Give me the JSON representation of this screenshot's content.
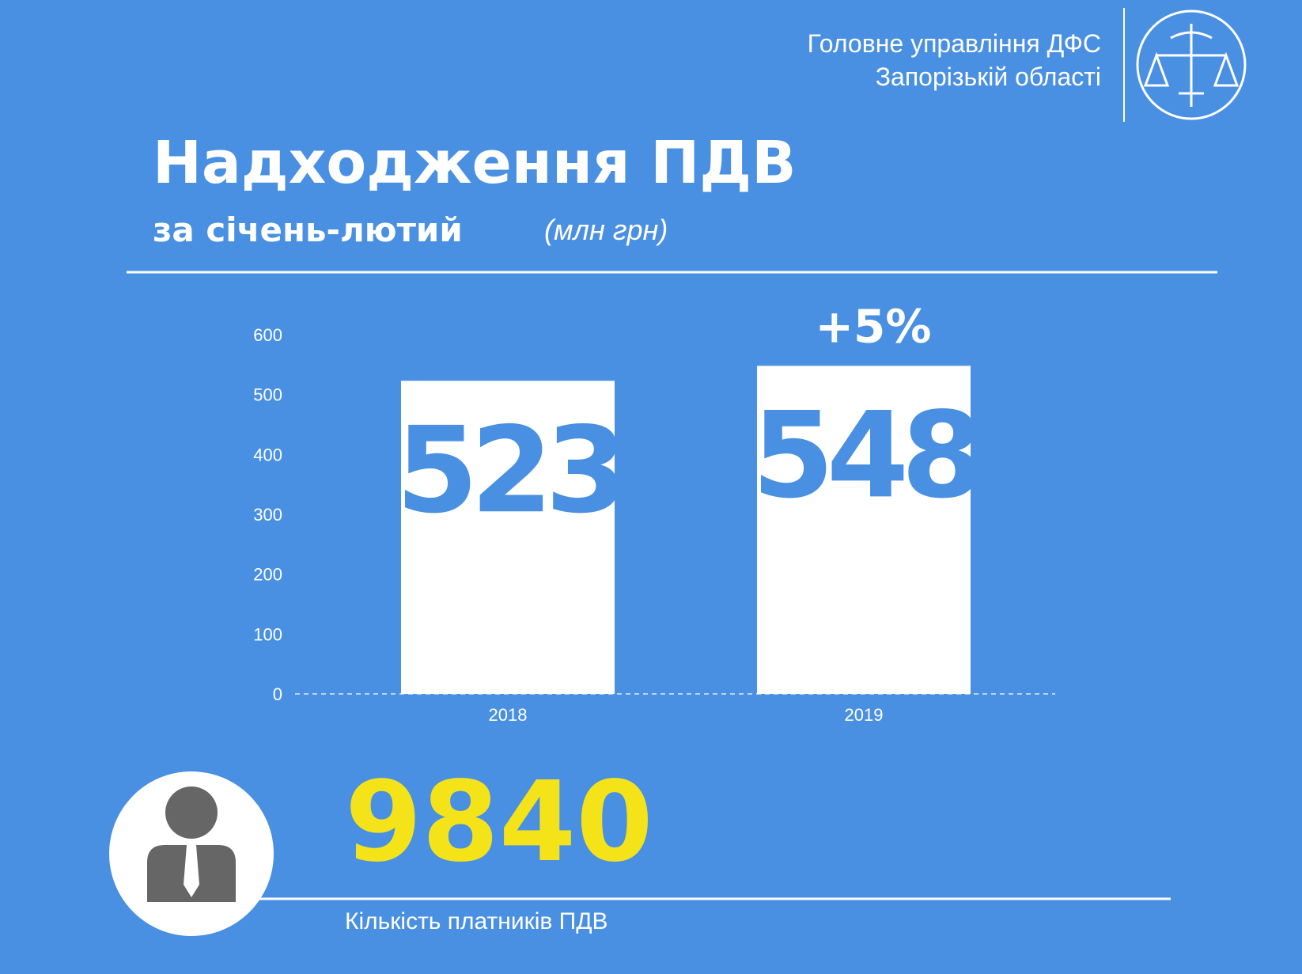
{
  "header": {
    "organization": [
      "Головне управління ДФС",
      "Запорізькій області"
    ]
  },
  "chart_data": {
    "type": "bar",
    "title": "Надходження ПДВ",
    "subtitle": "за січень-лютий",
    "unit": "(млн грн)",
    "categories": [
      "2018",
      "2019"
    ],
    "values": [
      523,
      548
    ],
    "color": "#ffffff",
    "label_color": "#4a90e2",
    "annotation": "+5%",
    "ylim": [
      0,
      600
    ],
    "yticks": [
      0,
      100,
      200,
      300,
      400,
      500,
      600
    ],
    "grid": false
  },
  "footer": {
    "count": "9840",
    "label": "Кількість платників ПДВ"
  }
}
